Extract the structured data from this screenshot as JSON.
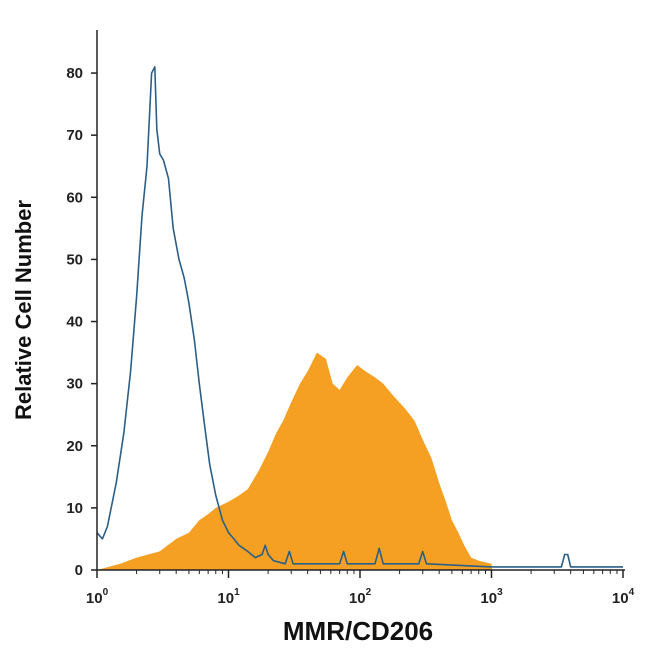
{
  "chart_data": {
    "type": "area",
    "title": "",
    "xlabel": "MMR/CD206",
    "ylabel": "Relative Cell Number",
    "xscale": "log",
    "xlim": [
      1,
      10000
    ],
    "ylim": [
      0,
      85
    ],
    "yticks": [
      0,
      10,
      20,
      30,
      40,
      50,
      60,
      70,
      80
    ],
    "xticks": [
      {
        "base": "10",
        "exp": "0",
        "value": 1
      },
      {
        "base": "10",
        "exp": "1",
        "value": 10
      },
      {
        "base": "10",
        "exp": "2",
        "value": 100
      },
      {
        "base": "10",
        "exp": "3",
        "value": 1000
      },
      {
        "base": "10",
        "exp": "4",
        "value": 10000
      }
    ],
    "grid": false,
    "legend": "none",
    "series": [
      {
        "style": "filled",
        "color": "#f5a022",
        "points": [
          [
            1.0,
            0
          ],
          [
            1.5,
            1
          ],
          [
            2.0,
            2
          ],
          [
            3.0,
            3
          ],
          [
            4.0,
            5
          ],
          [
            5.0,
            6
          ],
          [
            6.0,
            8
          ],
          [
            7.0,
            9
          ],
          [
            8.0,
            10
          ],
          [
            10.0,
            11
          ],
          [
            12.0,
            12
          ],
          [
            14.0,
            13
          ],
          [
            17.0,
            16
          ],
          [
            20.0,
            19
          ],
          [
            23.0,
            22
          ],
          [
            26.0,
            24
          ],
          [
            30.0,
            27
          ],
          [
            35.0,
            30
          ],
          [
            40.0,
            32
          ],
          [
            47.0,
            35
          ],
          [
            55.0,
            34
          ],
          [
            62.0,
            30
          ],
          [
            70.0,
            29
          ],
          [
            80.0,
            31
          ],
          [
            95.0,
            33
          ],
          [
            110.0,
            32
          ],
          [
            130.0,
            31
          ],
          [
            150.0,
            30
          ],
          [
            180.0,
            28
          ],
          [
            220.0,
            26
          ],
          [
            260.0,
            24
          ],
          [
            300.0,
            21
          ],
          [
            350.0,
            18
          ],
          [
            400.0,
            14
          ],
          [
            450.0,
            11
          ],
          [
            500.0,
            8
          ],
          [
            560.0,
            6
          ],
          [
            620.0,
            4
          ],
          [
            700.0,
            2
          ],
          [
            800.0,
            1.5
          ],
          [
            1000.0,
            1
          ],
          [
            1010.0,
            0
          ]
        ]
      },
      {
        "style": "line",
        "color": "#2b5f87",
        "points": [
          [
            1.0,
            6
          ],
          [
            1.1,
            5
          ],
          [
            1.2,
            7
          ],
          [
            1.4,
            14
          ],
          [
            1.6,
            22
          ],
          [
            1.8,
            32
          ],
          [
            2.0,
            44
          ],
          [
            2.2,
            57
          ],
          [
            2.4,
            65
          ],
          [
            2.6,
            80
          ],
          [
            2.75,
            81
          ],
          [
            2.85,
            71
          ],
          [
            3.0,
            67
          ],
          [
            3.2,
            66
          ],
          [
            3.5,
            63
          ],
          [
            3.8,
            55
          ],
          [
            4.2,
            50
          ],
          [
            4.6,
            47
          ],
          [
            5.0,
            43
          ],
          [
            5.5,
            37
          ],
          [
            6.0,
            30
          ],
          [
            6.6,
            23
          ],
          [
            7.2,
            17
          ],
          [
            8.0,
            12
          ],
          [
            9.0,
            8
          ],
          [
            10.0,
            6
          ],
          [
            11.0,
            5
          ],
          [
            12.0,
            4
          ],
          [
            14.0,
            3
          ],
          [
            16.0,
            2
          ],
          [
            18.0,
            2.5
          ],
          [
            19.0,
            4
          ],
          [
            20.0,
            2.5
          ],
          [
            22.0,
            1.5
          ],
          [
            27.0,
            1
          ],
          [
            29.0,
            3
          ],
          [
            31.0,
            1
          ],
          [
            40.0,
            1
          ],
          [
            70.0,
            1
          ],
          [
            75.0,
            3
          ],
          [
            80.0,
            1
          ],
          [
            130.0,
            1
          ],
          [
            140.0,
            3.5
          ],
          [
            150.0,
            1
          ],
          [
            280.0,
            1
          ],
          [
            300.0,
            3
          ],
          [
            320.0,
            1
          ],
          [
            1000.0,
            0.5
          ],
          [
            3400.0,
            0.5
          ],
          [
            3600.0,
            2.5
          ],
          [
            3800.0,
            2.5
          ],
          [
            4000.0,
            0.5
          ],
          [
            10000.0,
            0.5
          ]
        ]
      }
    ]
  }
}
